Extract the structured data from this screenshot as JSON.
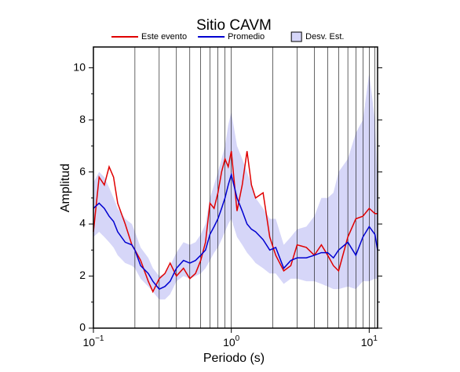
{
  "chart_data": {
    "type": "line",
    "title": "Sitio CAVM",
    "xlabel": "Periodo (s)",
    "ylabel": "Amplitud",
    "xscale": "log",
    "xlim": [
      0.1,
      11.5
    ],
    "ylim": [
      0,
      10.8
    ],
    "xticks": [
      {
        "value": 0.1,
        "label": "10",
        "exponent": "−1"
      },
      {
        "value": 1,
        "label": "10",
        "exponent": "0"
      },
      {
        "value": 10,
        "label": "10",
        "exponent": "1"
      }
    ],
    "xgrid": [
      0.1,
      0.2,
      0.3,
      0.4,
      0.5,
      0.6,
      0.7,
      0.8,
      0.9,
      1,
      2,
      3,
      4,
      5,
      6,
      7,
      8,
      9,
      10,
      11
    ],
    "yticks": [
      0,
      2,
      4,
      6,
      8,
      10
    ],
    "yminor": [
      1,
      3,
      5,
      7,
      9
    ],
    "x": [
      0.1,
      0.11,
      0.12,
      0.13,
      0.14,
      0.15,
      0.17,
      0.19,
      0.2,
      0.22,
      0.25,
      0.27,
      0.3,
      0.33,
      0.36,
      0.4,
      0.45,
      0.5,
      0.55,
      0.6,
      0.65,
      0.7,
      0.75,
      0.8,
      0.85,
      0.9,
      0.95,
      1.0,
      1.1,
      1.2,
      1.3,
      1.4,
      1.5,
      1.7,
      1.9,
      2.1,
      2.4,
      2.7,
      3,
      3.5,
      4,
      4.5,
      5,
      5.5,
      6,
      7,
      8,
      9,
      10,
      11,
      11.5
    ],
    "series": [
      {
        "name": "Este evento",
        "color": "#e00000",
        "values": [
          3.7,
          5.8,
          5.5,
          6.2,
          5.8,
          4.8,
          4.0,
          3.2,
          3.0,
          2.6,
          1.8,
          1.4,
          1.9,
          2.1,
          2.5,
          2.0,
          2.3,
          1.9,
          2.1,
          2.6,
          3.3,
          4.8,
          4.6,
          5.2,
          6.0,
          6.5,
          6.2,
          6.8,
          4.5,
          5.5,
          6.8,
          5.5,
          5.0,
          5.2,
          3.5,
          2.8,
          2.2,
          2.4,
          3.2,
          3.1,
          2.8,
          3.2,
          2.8,
          2.4,
          2.2,
          3.5,
          4.2,
          4.3,
          4.6,
          4.4,
          4.4
        ]
      },
      {
        "name": "Promedio",
        "color": "#0000d0",
        "values": [
          4.6,
          4.8,
          4.6,
          4.3,
          4.1,
          3.7,
          3.3,
          3.2,
          3.0,
          2.4,
          2.1,
          1.8,
          1.5,
          1.6,
          1.8,
          2.3,
          2.6,
          2.5,
          2.6,
          2.8,
          3.0,
          3.6,
          3.9,
          4.2,
          4.6,
          5.0,
          5.5,
          5.9,
          5.0,
          4.5,
          4.0,
          3.8,
          3.7,
          3.4,
          3.0,
          3.1,
          2.3,
          2.6,
          2.7,
          2.7,
          2.8,
          2.9,
          2.9,
          2.7,
          3.0,
          3.3,
          2.8,
          3.5,
          3.9,
          3.6,
          3.0
        ]
      },
      {
        "name": "Desv. Est.",
        "color": "#d6d6f8",
        "upper": [
          5.6,
          6.0,
          5.8,
          5.4,
          5.0,
          4.6,
          4.2,
          4.0,
          3.7,
          3.1,
          2.7,
          2.3,
          2.0,
          2.1,
          2.4,
          2.9,
          3.3,
          3.2,
          3.3,
          3.6,
          4.0,
          5.0,
          5.5,
          6.0,
          6.5,
          7.0,
          7.8,
          8.3,
          7.0,
          6.5,
          6.0,
          5.5,
          5.0,
          4.6,
          4.2,
          4.2,
          3.2,
          3.5,
          3.8,
          3.9,
          4.3,
          5.0,
          5.0,
          5.2,
          6.0,
          6.5,
          7.5,
          8.0,
          9.8,
          8.0,
          5.5
        ],
        "lower": [
          3.5,
          3.7,
          3.5,
          3.3,
          3.1,
          2.8,
          2.5,
          2.4,
          2.3,
          1.9,
          1.6,
          1.4,
          1.1,
          1.1,
          1.3,
          1.8,
          2.0,
          1.9,
          2.0,
          2.1,
          2.3,
          2.6,
          2.9,
          3.1,
          3.4,
          3.7,
          4.0,
          4.2,
          3.5,
          3.2,
          2.9,
          2.7,
          2.5,
          2.3,
          2.1,
          2.1,
          1.7,
          1.9,
          1.9,
          1.8,
          1.8,
          1.7,
          1.6,
          1.5,
          1.5,
          1.6,
          1.5,
          1.8,
          1.8,
          1.9,
          1.9
        ]
      }
    ]
  }
}
